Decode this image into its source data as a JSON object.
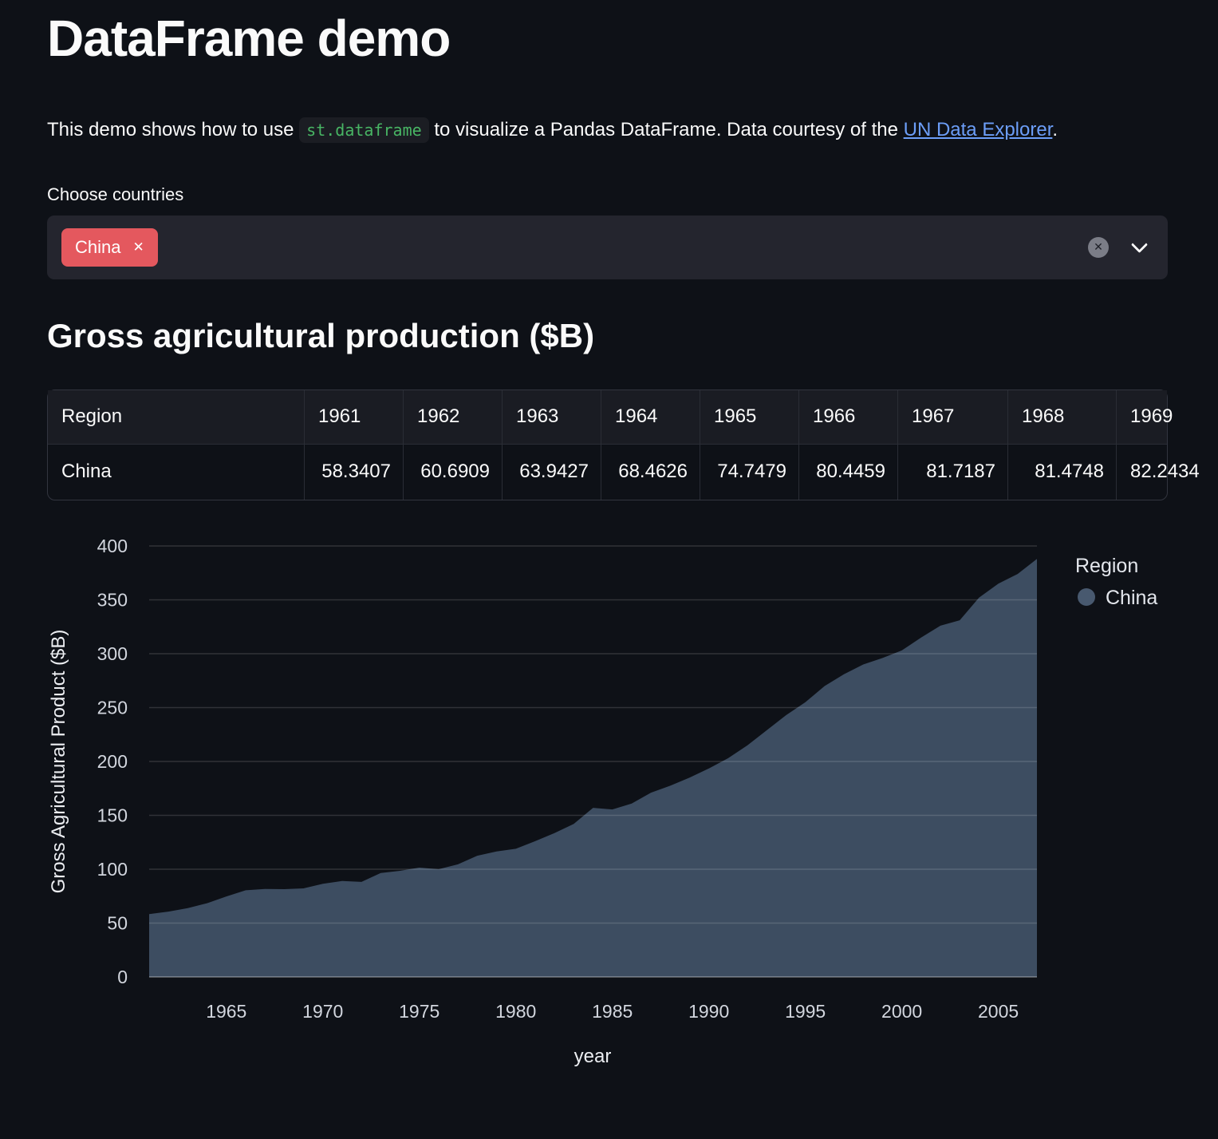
{
  "page_title": "DataFrame demo",
  "intro": {
    "text_before_code": "This demo shows how to use",
    "code": "st.dataframe",
    "text_after_code": "to visualize a Pandas DataFrame. Data courtesy of the",
    "link_text": "UN Data Explorer",
    "text_end": "."
  },
  "multiselect": {
    "label": "Choose countries",
    "selected_tags": [
      {
        "label": "China",
        "remove_icon": "✕"
      }
    ],
    "clear_icon": "✕"
  },
  "section_heading": "Gross agricultural production ($B)",
  "table": {
    "columns": [
      "Region",
      "1961",
      "1962",
      "1963",
      "1964",
      "1965",
      "1966",
      "1967",
      "1968",
      "1969"
    ],
    "rows": [
      {
        "cells": [
          "China",
          "58.3407",
          "60.6909",
          "63.9427",
          "68.4626",
          "74.7479",
          "80.4459",
          "81.7187",
          "81.4748",
          "82.2434"
        ]
      }
    ]
  },
  "chart_data": {
    "type": "area",
    "title": "",
    "xlabel": "year",
    "ylabel": "Gross Agricultural Product ($B)",
    "grid": true,
    "legend": {
      "title": "Region",
      "position": "right-top",
      "entries": [
        {
          "label": "China",
          "color": "#48596f"
        }
      ]
    },
    "xlim": [
      1961,
      2007
    ],
    "ylim": [
      0,
      400
    ],
    "x_ticks": [
      1965,
      1970,
      1975,
      1980,
      1985,
      1990,
      1995,
      2000,
      2005
    ],
    "y_ticks": [
      0,
      50,
      100,
      150,
      200,
      250,
      300,
      350,
      400
    ],
    "x": [
      1961,
      1962,
      1963,
      1964,
      1965,
      1966,
      1967,
      1968,
      1969,
      1970,
      1971,
      1972,
      1973,
      1974,
      1975,
      1976,
      1977,
      1978,
      1979,
      1980,
      1981,
      1982,
      1983,
      1984,
      1985,
      1986,
      1987,
      1988,
      1989,
      1990,
      1991,
      1992,
      1993,
      1994,
      1995,
      1996,
      1997,
      1998,
      1999,
      2000,
      2001,
      2002,
      2003,
      2004,
      2005,
      2006,
      2007
    ],
    "series": [
      {
        "name": "China",
        "color": "#3d4d61",
        "values": [
          58.3407,
          60.6909,
          63.9427,
          68.4626,
          74.7479,
          80.4459,
          81.7187,
          81.4748,
          82.2434,
          86.5,
          89.0,
          88.2,
          96.5,
          98.5,
          101.5,
          100.0,
          104.5,
          112.5,
          116.5,
          119.0,
          126.0,
          133.5,
          142.0,
          157.0,
          155.5,
          161.0,
          171.0,
          177.5,
          185.0,
          193.5,
          203.0,
          215.0,
          229.0,
          243.0,
          255.0,
          270.0,
          281.0,
          290.0,
          296.0,
          303.0,
          315.0,
          326.0,
          331.0,
          352.0,
          365.0,
          374.0,
          388.0
        ]
      }
    ]
  },
  "colors": {
    "background": "#0e1117",
    "text": "#fafafa",
    "tag_red": "#e4585e",
    "link_blue": "#6c9ef8",
    "code_green": "#48b564",
    "area_fill": "#3d4d61"
  }
}
